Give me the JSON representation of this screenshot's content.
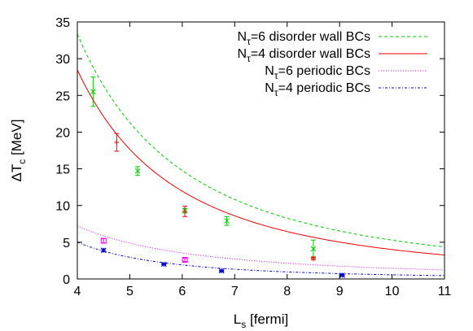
{
  "chart_data": {
    "type": "scatter",
    "xlabel": {
      "main": "L",
      "sub": "s",
      "unit": " [fermi]"
    },
    "ylabel": {
      "prefix": "ΔT",
      "sub": "c",
      "unit": " [MeV]"
    },
    "xlim": [
      4,
      11
    ],
    "ylim": [
      0,
      35
    ],
    "xticks": [
      4,
      5,
      6,
      7,
      8,
      9,
      10,
      11
    ],
    "yticks": [
      0,
      5,
      10,
      15,
      20,
      25,
      30,
      35
    ],
    "grid": false,
    "legend_position": "top-right",
    "series": [
      {
        "name_main": "N",
        "name_sub": "τ",
        "name_rest": "=6 disorder wall BCs",
        "color": "#00cc00",
        "dash": "dashed",
        "marker": "x",
        "fit": {
          "A": 541,
          "p": 2.01
        },
        "points": [
          {
            "x": 4.3,
            "y": 25.5,
            "err": 2.0
          },
          {
            "x": 5.15,
            "y": 14.7,
            "err": 0.6
          },
          {
            "x": 6.05,
            "y": 9.3,
            "err": 0.3
          },
          {
            "x": 6.85,
            "y": 7.9,
            "err": 0.6
          },
          {
            "x": 8.5,
            "y": 4.1,
            "err": 1.2
          }
        ]
      },
      {
        "name_main": "N",
        "name_sub": "τ",
        "name_rest": "=4 disorder wall BCs",
        "color": "#ee0000",
        "dash": "solid",
        "marker": "plus",
        "fit": {
          "A": 553,
          "p": 2.14
        },
        "points": [
          {
            "x": 4.75,
            "y": 18.6,
            "err": 1.2
          },
          {
            "x": 6.05,
            "y": 9.2,
            "err": 0.7
          },
          {
            "x": 8.5,
            "y": 2.8,
            "err": 0.2
          }
        ]
      },
      {
        "name_main": "N",
        "name_sub": "τ",
        "name_rest": "=6 periodic BCs",
        "color": "#ee00ee",
        "dash": "dotted",
        "marker": "box",
        "fit": {
          "A": 81.5,
          "p": 1.75
        },
        "points": [
          {
            "x": 4.5,
            "y": 5.2,
            "err": 0.3
          },
          {
            "x": 6.05,
            "y": 2.6,
            "err": 0.2
          }
        ]
      },
      {
        "name_main": "N",
        "name_sub": "τ",
        "name_rest": "=4 periodic BCs",
        "color": "#0000cc",
        "dash": "dashdot",
        "marker": "star",
        "fit": {
          "A": 135.8,
          "p": 2.38
        },
        "points": [
          {
            "x": 4.5,
            "y": 3.9,
            "err": 0.2
          },
          {
            "x": 5.65,
            "y": 2.0,
            "err": 0.1
          },
          {
            "x": 6.75,
            "y": 1.1,
            "err": 0.1
          },
          {
            "x": 9.05,
            "y": 0.5,
            "err": 0.1
          }
        ]
      }
    ]
  }
}
